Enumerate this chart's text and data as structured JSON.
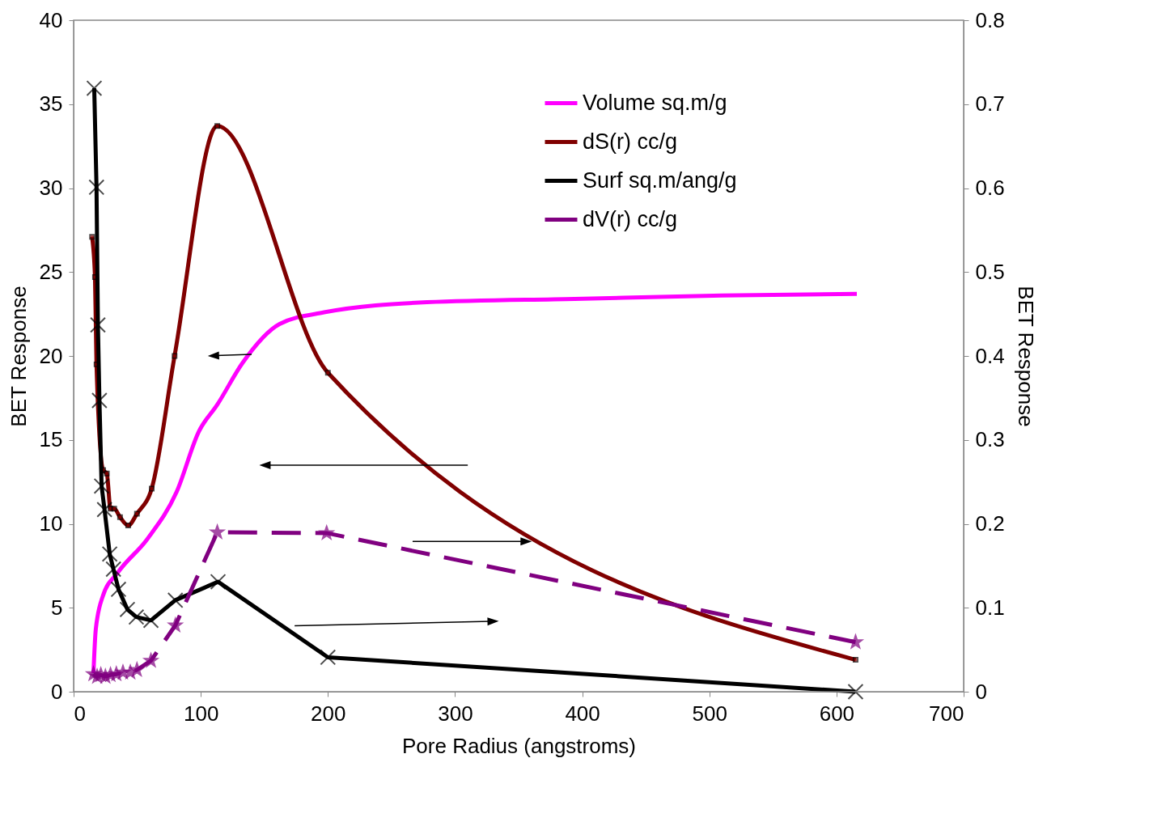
{
  "chart_data": {
    "type": "line",
    "xlabel": "Pore Radius (angstroms)",
    "ylabel": "BET Response",
    "y2label": "BET Response",
    "xlim": [
      0,
      700
    ],
    "xticks": [
      0,
      100,
      200,
      300,
      400,
      500,
      600,
      700
    ],
    "ylim": [
      0,
      40
    ],
    "yticks": [
      0,
      5,
      10,
      15,
      20,
      25,
      30,
      35,
      40
    ],
    "y2lim": [
      0,
      0.8
    ],
    "y2ticks": [
      0,
      0.1,
      0.2,
      0.3,
      0.4,
      0.5,
      0.6,
      0.7,
      0.8
    ],
    "grid": false,
    "legend": "top right",
    "series": [
      {
        "name": "Volume sq.m/g",
        "color": "#ff00ff",
        "marker": "none",
        "line_style": "solid",
        "x": [
          15.6,
          17.4,
          23,
          34.8,
          58,
          81,
          98.5,
          113,
          133,
          162,
          197,
          278,
          394,
          510,
          616
        ],
        "values": [
          1.1,
          3.7,
          5.7,
          7.1,
          9.1,
          11.9,
          15.5,
          17.1,
          19.6,
          21.9,
          22.6,
          23.2,
          23.4,
          23.6,
          23.7
        ]
      },
      {
        "name": "dS(r) cc/g",
        "color": "#800000",
        "marker": "square",
        "line_style": "solid",
        "x": [
          14.5,
          16.8,
          18,
          23.2,
          26.1,
          29,
          31.9,
          36.5,
          42.9,
          49.8,
          61.4,
          79.4,
          113,
          200,
          615
        ],
        "values": [
          27.1,
          24.7,
          19.5,
          13.2,
          13.0,
          10.9,
          10.9,
          10.4,
          9.9,
          10.6,
          12.1,
          20.0,
          33.7,
          19.0,
          1.9
        ]
      },
      {
        "name": "Surf sq.m/ang/g",
        "color": "#000000",
        "marker": "cross",
        "line_style": "solid",
        "axis": "y2",
        "x": [
          16.2,
          18,
          19.1,
          20.3,
          22,
          24.3,
          28.4,
          31.3,
          35.3,
          42.3,
          49.3,
          60.8,
          80,
          113.6,
          200,
          615
        ],
        "values": [
          0.719,
          0.601,
          0.437,
          0.347,
          0.245,
          0.217,
          0.164,
          0.146,
          0.122,
          0.098,
          0.089,
          0.085,
          0.109,
          0.131,
          0.041,
          0
        ]
      },
      {
        "name": "dV(r) cc/g",
        "color": "#800080",
        "marker": "star",
        "line_style": "dashed",
        "axis": "y2",
        "x": [
          15.6,
          18.5,
          21.4,
          25,
          29,
          33.6,
          38.8,
          44.6,
          49.8,
          60.8,
          80,
          113,
          199,
          615
        ],
        "values": [
          0.021,
          0.018,
          0.02,
          0.018,
          0.02,
          0.021,
          0.023,
          0.023,
          0.026,
          0.037,
          0.079,
          0.19,
          0.189,
          0.059
        ]
      }
    ]
  }
}
